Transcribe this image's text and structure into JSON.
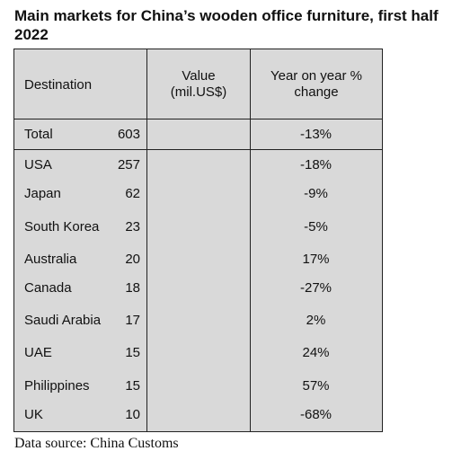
{
  "title": "Main markets for China’s wooden office furniture, first half 2022",
  "source": "Data source: China Customs",
  "chart_data": {
    "type": "table",
    "title": "Main markets for China’s wooden office furniture, first half 2022",
    "columns": [
      "Destination",
      "Value (mil.US$)",
      "Year on year % change"
    ],
    "header": {
      "destination": "Destination",
      "value_line1": "Value",
      "value_line2": "(mil.US$)",
      "change_line1": "Year on year %",
      "change_line2": "change"
    },
    "total": {
      "destination": "Total",
      "value": "603",
      "change": "-13%"
    },
    "rows": [
      {
        "destination": "USA",
        "value": "257",
        "change": "-18%"
      },
      {
        "destination": "Japan",
        "value": "62",
        "change": "-9%"
      },
      {
        "destination": "South Korea",
        "value": "23",
        "change": "-5%"
      },
      {
        "destination": "Australia",
        "value": "20",
        "change": "17%"
      },
      {
        "destination": "Canada",
        "value": "18",
        "change": "-27%"
      },
      {
        "destination": "Saudi Arabia",
        "value": "17",
        "change": "2%"
      },
      {
        "destination": "UAE",
        "value": "15",
        "change": "24%"
      },
      {
        "destination": "Philippines",
        "value": "15",
        "change": "57%"
      },
      {
        "destination": "UK",
        "value": "10",
        "change": "-68%"
      }
    ]
  },
  "colors": {
    "table_background": "#d9d9d9",
    "border": "#222222",
    "text": "#111111"
  }
}
